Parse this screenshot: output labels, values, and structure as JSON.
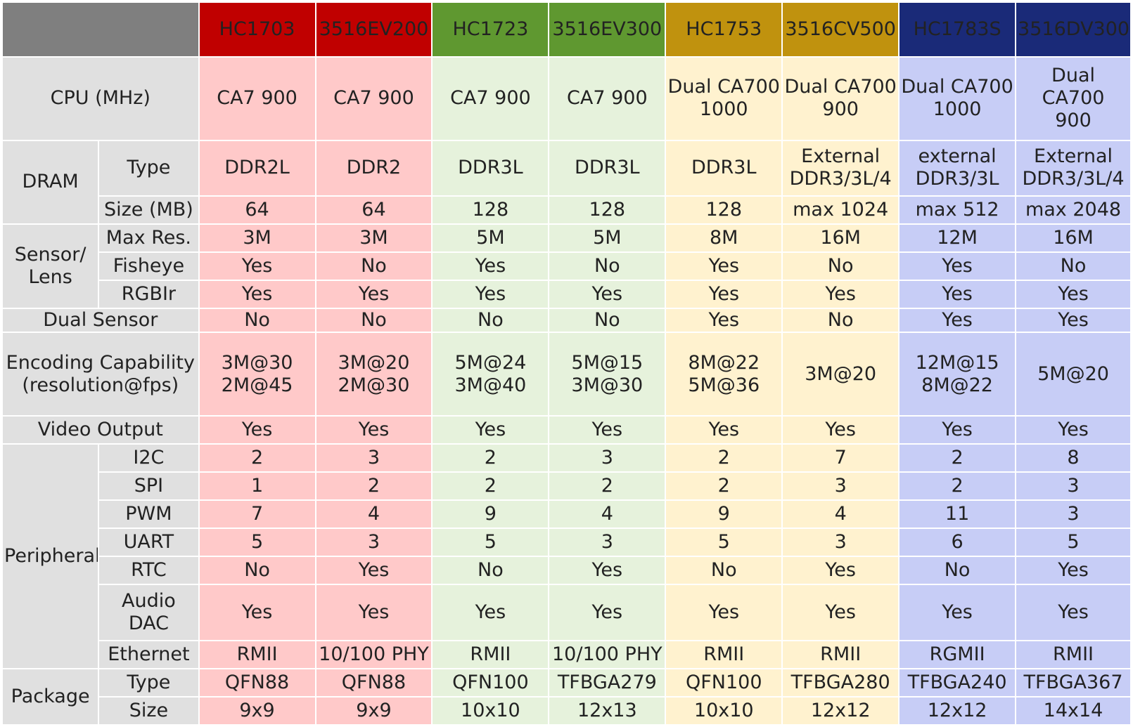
{
  "colors": {
    "header": [
      "#c00000",
      "#c00000",
      "#5f9830",
      "#5f9830",
      "#c0920e",
      "#c0920e",
      "#1a2a78",
      "#1a2a78"
    ],
    "body": [
      "red",
      "red",
      "green",
      "green",
      "gold",
      "gold",
      "blue",
      "blue"
    ]
  },
  "columns": [
    "HC1703",
    "3516EV200",
    "HC1723",
    "3516EV300",
    "HC1753",
    "3516CV500",
    "HC1783S",
    "3516DV300"
  ],
  "rows": [
    {
      "g": "CPU (MHz)",
      "gs": 1,
      "s": null,
      "v": [
        "CA7 900",
        "CA7 900",
        "CA7 900",
        "CA7 900",
        "Dual CA700\n1000",
        "Dual CA700\n900",
        "Dual CA700\n1000",
        "Dual CA700\n900"
      ]
    },
    {
      "g": "DRAM",
      "gs": 2,
      "s": "Type",
      "v": [
        "DDR2L",
        "DDR2",
        "DDR3L",
        "DDR3L",
        "DDR3L",
        "External\nDDR3/3L/4",
        "external\nDDR3/3L",
        "External\nDDR3/3L/4"
      ]
    },
    {
      "g": null,
      "s": "Size (MB)",
      "v": [
        "64",
        "64",
        "128",
        "128",
        "128",
        "max 1024",
        "max 512",
        "max 2048"
      ]
    },
    {
      "g": "Sensor/\nLens",
      "gs": 3,
      "s": "Max Res.",
      "v": [
        "3M",
        "3M",
        "5M",
        "5M",
        "8M",
        "16M",
        "12M",
        "16M"
      ]
    },
    {
      "g": null,
      "s": "Fisheye",
      "v": [
        "Yes",
        "No",
        "Yes",
        "No",
        "Yes",
        "No",
        "Yes",
        "No"
      ]
    },
    {
      "g": null,
      "s": "RGBIr",
      "v": [
        "Yes",
        "Yes",
        "Yes",
        "Yes",
        "Yes",
        "Yes",
        "Yes",
        "Yes"
      ]
    },
    {
      "g": "Dual Sensor",
      "gs": 1,
      "s": null,
      "v": [
        "No",
        "No",
        "No",
        "No",
        "Yes",
        "No",
        "Yes",
        "Yes"
      ]
    },
    {
      "g": "Encoding Capability\n(resolution@fps)",
      "gs": 1,
      "s": null,
      "v": [
        "3M@30\n2M@45",
        "3M@20\n2M@30",
        "5M@24\n3M@40",
        "5M@15\n3M@30",
        "8M@22\n5M@36",
        "3M@20",
        "12M@15\n8M@22",
        "5M@20"
      ]
    },
    {
      "g": "Video Output",
      "gs": 1,
      "s": null,
      "v": [
        "Yes",
        "Yes",
        "Yes",
        "Yes",
        "Yes",
        "Yes",
        "Yes",
        "Yes"
      ]
    },
    {
      "g": "Peripheral",
      "gs": 7,
      "s": "I2C",
      "v": [
        "2",
        "3",
        "2",
        "3",
        "2",
        "7",
        "2",
        "8"
      ]
    },
    {
      "g": null,
      "s": "SPI",
      "v": [
        "1",
        "2",
        "2",
        "2",
        "2",
        "3",
        "2",
        "3"
      ]
    },
    {
      "g": null,
      "s": "PWM",
      "v": [
        "7",
        "4",
        "9",
        "4",
        "9",
        "4",
        "11",
        "3"
      ]
    },
    {
      "g": null,
      "s": "UART",
      "v": [
        "5",
        "3",
        "5",
        "3",
        "5",
        "3",
        "6",
        "5"
      ]
    },
    {
      "g": null,
      "s": "RTC",
      "v": [
        "No",
        "Yes",
        "No",
        "Yes",
        "No",
        "Yes",
        "No",
        "Yes"
      ]
    },
    {
      "g": null,
      "s": "Audio DAC",
      "v": [
        "Yes",
        "Yes",
        "Yes",
        "Yes",
        "Yes",
        "Yes",
        "Yes",
        "Yes"
      ]
    },
    {
      "g": null,
      "s": "Ethernet",
      "v": [
        "RMII",
        "10/100 PHY",
        "RMII",
        "10/100 PHY",
        "RMII",
        "RMII",
        "RGMII",
        "RMII"
      ]
    },
    {
      "g": "Package",
      "gs": 2,
      "s": "Type",
      "v": [
        "QFN88",
        "QFN88",
        "QFN100",
        "TFBGA279",
        "QFN100",
        "TFBGA280",
        "TFBGA240",
        "TFBGA367"
      ]
    },
    {
      "g": null,
      "s": "Size",
      "v": [
        "9x9",
        "9x9",
        "10x10",
        "12x13",
        "10x10",
        "12x12",
        "12x12",
        "14x14"
      ]
    }
  ]
}
